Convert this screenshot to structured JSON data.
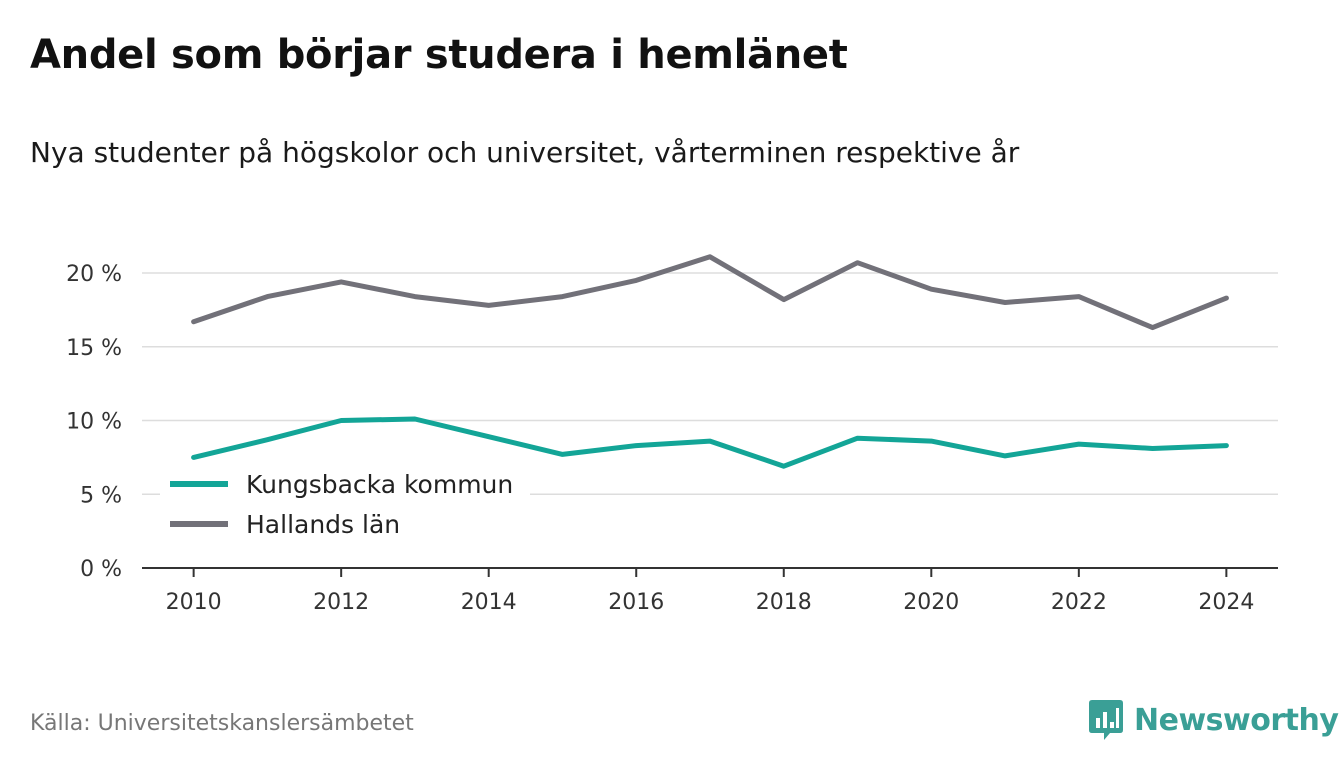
{
  "header": {
    "title": "Andel som börjar studera i hemlänet",
    "subtitle": "Nya studenter på högskolor och universitet, vårterminen respektive år"
  },
  "footer": {
    "source": "Källa: Universitetskanslersämbetet",
    "brand": "Newsworthy",
    "brand_icon": "newsworthy-logo-icon"
  },
  "chart_data": {
    "type": "line",
    "x": [
      2010,
      2011,
      2012,
      2013,
      2014,
      2015,
      2016,
      2017,
      2018,
      2019,
      2020,
      2021,
      2022,
      2023,
      2024
    ],
    "series": [
      {
        "name": "Kungsbacka kommun",
        "color": "#13a597",
        "values": [
          7.5,
          8.7,
          10.0,
          10.1,
          8.9,
          7.7,
          8.3,
          8.6,
          6.9,
          8.8,
          8.6,
          7.6,
          8.4,
          8.1,
          8.3
        ]
      },
      {
        "name": "Hallands län",
        "color": "#727179",
        "values": [
          16.7,
          18.4,
          19.4,
          18.4,
          17.8,
          18.4,
          19.5,
          21.1,
          18.2,
          20.7,
          18.9,
          18.0,
          18.4,
          16.3,
          18.3
        ]
      }
    ],
    "x_ticks": [
      "2010",
      "2012",
      "2014",
      "2016",
      "2018",
      "2020",
      "2022",
      "2024"
    ],
    "y_ticks": [
      "0 %",
      "5 %",
      "10 %",
      "15 %",
      "20 %"
    ],
    "y_tick_values": [
      0,
      5,
      10,
      15,
      20
    ],
    "xlim": [
      2009.3,
      2024.7
    ],
    "ylim": [
      0,
      20
    ],
    "grid": true,
    "legend": "bottom-left"
  }
}
